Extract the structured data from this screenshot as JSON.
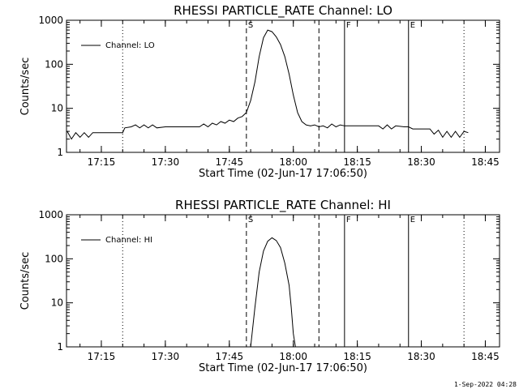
{
  "footer_timestamp": "1-Sep-2022 04:28",
  "chart_data": [
    {
      "type": "line",
      "title": "RHESSI PARTICLE_RATE Channel: LO",
      "xlabel": "Start Time (02-Jun-17 17:06:50)",
      "ylabel": "Counts/sec",
      "y_scale": "log",
      "ylim": [
        1,
        1000
      ],
      "x_unit": "minutes of the day (HH:MM)",
      "xlim": [
        "17:06:50",
        "18:48:20"
      ],
      "x_ticks": [
        "17:15",
        "17:30",
        "17:45",
        "18:00",
        "18:15",
        "18:30",
        "18:45"
      ],
      "y_ticks": [
        "1",
        "10",
        "100",
        "1000"
      ],
      "legend": {
        "position": "top-left",
        "entries": [
          "Channel: LO"
        ]
      },
      "markers": [
        {
          "label": "",
          "time": "17:20",
          "style": "dotted"
        },
        {
          "label": "S",
          "time": "17:49",
          "style": "dashed"
        },
        {
          "label": "",
          "time": "18:06",
          "style": "dashed"
        },
        {
          "label": "F",
          "time": "18:12",
          "style": "solid"
        },
        {
          "label": "E",
          "time": "18:27",
          "style": "solid"
        },
        {
          "label": "",
          "time": "18:40",
          "style": "dotted"
        }
      ],
      "series": [
        {
          "name": "Channel: LO",
          "points": [
            [
              "17:07",
              3
            ],
            [
              "17:08",
              2
            ],
            [
              "17:09",
              2.8
            ],
            [
              "17:10",
              2.2
            ],
            [
              "17:11",
              2.8
            ],
            [
              "17:12",
              2.2
            ],
            [
              "17:13",
              2.8
            ],
            [
              "17:14",
              2.8
            ],
            [
              "17:16",
              2.8
            ],
            [
              "17:18",
              2.8
            ],
            [
              "17:20",
              2.8
            ],
            [
              "17:20.5",
              3.6
            ],
            [
              "17:22",
              3.8
            ],
            [
              "17:23",
              4.2
            ],
            [
              "17:24",
              3.6
            ],
            [
              "17:25",
              4.2
            ],
            [
              "17:26",
              3.6
            ],
            [
              "17:27",
              4.2
            ],
            [
              "17:28",
              3.6
            ],
            [
              "17:30",
              3.8
            ],
            [
              "17:33",
              3.8
            ],
            [
              "17:36",
              3.8
            ],
            [
              "17:38",
              3.8
            ],
            [
              "17:39",
              4.4
            ],
            [
              "17:40",
              3.8
            ],
            [
              "17:41",
              4.6
            ],
            [
              "17:42",
              4.2
            ],
            [
              "17:43",
              5
            ],
            [
              "17:44",
              4.6
            ],
            [
              "17:45",
              5.4
            ],
            [
              "17:46",
              5
            ],
            [
              "17:47",
              6
            ],
            [
              "17:48",
              6.5
            ],
            [
              "17:49",
              8
            ],
            [
              "17:50",
              15
            ],
            [
              "17:51",
              40
            ],
            [
              "17:52",
              150
            ],
            [
              "17:53",
              400
            ],
            [
              "17:54",
              600
            ],
            [
              "17:55",
              550
            ],
            [
              "17:56",
              420
            ],
            [
              "17:57",
              280
            ],
            [
              "17:58",
              150
            ],
            [
              "17:59",
              60
            ],
            [
              "18:00",
              20
            ],
            [
              "18:01",
              8
            ],
            [
              "18:02",
              5
            ],
            [
              "18:03",
              4.2
            ],
            [
              "18:04",
              4
            ],
            [
              "18:05",
              4.2
            ],
            [
              "18:06",
              3.8
            ],
            [
              "18:07",
              4
            ],
            [
              "18:08",
              3.6
            ],
            [
              "18:09",
              4.4
            ],
            [
              "18:10",
              3.8
            ],
            [
              "18:11",
              4.2
            ],
            [
              "18:12",
              4
            ],
            [
              "18:15",
              4
            ],
            [
              "18:18",
              4
            ],
            [
              "18:20",
              4
            ],
            [
              "18:21",
              3.4
            ],
            [
              "18:22",
              4.2
            ],
            [
              "18:23",
              3.4
            ],
            [
              "18:24",
              4
            ],
            [
              "18:26",
              3.8
            ],
            [
              "18:27",
              3.8
            ],
            [
              "18:28",
              3.4
            ],
            [
              "18:30",
              3.4
            ],
            [
              "18:32",
              3.4
            ],
            [
              "18:33",
              2.6
            ],
            [
              "18:34",
              3.2
            ],
            [
              "18:35",
              2.2
            ],
            [
              "18:36",
              3
            ],
            [
              "18:37",
              2.2
            ],
            [
              "18:38",
              3
            ],
            [
              "18:39",
              2.2
            ],
            [
              "18:40",
              3
            ],
            [
              "18:41",
              2.8
            ]
          ]
        }
      ]
    },
    {
      "type": "line",
      "title": "RHESSI PARTICLE_RATE Channel: HI",
      "xlabel": "Start Time (02-Jun-17 17:06:50)",
      "ylabel": "Counts/sec",
      "y_scale": "log",
      "ylim": [
        1,
        1000
      ],
      "x_unit": "minutes of the day (HH:MM)",
      "xlim": [
        "17:06:50",
        "18:48:20"
      ],
      "x_ticks": [
        "17:15",
        "17:30",
        "17:45",
        "18:00",
        "18:15",
        "18:30",
        "18:45"
      ],
      "y_ticks": [
        "1",
        "10",
        "100",
        "1000"
      ],
      "legend": {
        "position": "top-left",
        "entries": [
          "Channel: HI"
        ]
      },
      "markers": [
        {
          "label": "",
          "time": "17:20",
          "style": "dotted"
        },
        {
          "label": "S",
          "time": "17:49",
          "style": "dashed"
        },
        {
          "label": "",
          "time": "18:06",
          "style": "dashed"
        },
        {
          "label": "F",
          "time": "18:12",
          "style": "solid"
        },
        {
          "label": "E",
          "time": "18:27",
          "style": "solid"
        },
        {
          "label": "",
          "time": "18:40",
          "style": "dotted"
        }
      ],
      "series": [
        {
          "name": "Channel: HI",
          "points": [
            [
              "17:50",
              1
            ],
            [
              "17:51",
              8
            ],
            [
              "17:52",
              50
            ],
            [
              "17:53",
              150
            ],
            [
              "17:54",
              250
            ],
            [
              "17:55",
              300
            ],
            [
              "17:56",
              260
            ],
            [
              "17:57",
              180
            ],
            [
              "17:58",
              80
            ],
            [
              "17:59",
              25
            ],
            [
              "17:59.5",
              8
            ],
            [
              "18:00",
              2
            ],
            [
              "18:00.5",
              1
            ]
          ]
        }
      ]
    }
  ]
}
